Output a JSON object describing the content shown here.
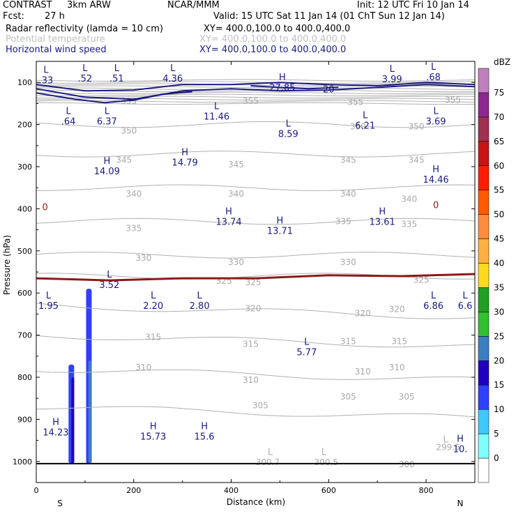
{
  "header": {
    "model": "CONTRAST",
    "model_res": "3km ARW",
    "org": "NCAR/MMM",
    "init": "Init: 12 UTC Fri 10 Jan 14",
    "fcst_label": "Fcst:",
    "fcst_value": "27 h",
    "valid": "Valid: 15 UTC Sat 11 Jan 14 (01 ChT Sun 12 Jan 14)",
    "fields": [
      {
        "name": "Radar reflectivity (lamda = 10 cm)",
        "xy": "XY= 400.0,100.0 to 400.0,400.0"
      },
      {
        "name": "Potential temperature",
        "xy": "XY= 400.0,100.0 to 400.0,400.0"
      },
      {
        "name": "Horizontal wind speed",
        "xy": "XY= 400.0,100.0 to 400.0,400.0"
      }
    ]
  },
  "chart_data": {
    "type": "cross-section",
    "x_axis": {
      "label": "Distance (km)",
      "range": [
        0,
        900
      ],
      "ticks": [
        0,
        200,
        400,
        600,
        800
      ],
      "end_labels": {
        "left": "S",
        "right": "N"
      }
    },
    "y_axis": {
      "label": "Pressure (hPa)",
      "range": [
        1050,
        50
      ],
      "ticks": [
        100,
        200,
        300,
        400,
        500,
        600,
        700,
        800,
        900,
        1000
      ]
    },
    "surface_pressure_hpa": 1005,
    "colorbar": {
      "title": "dBZ",
      "levels": [
        0,
        5,
        10,
        15,
        20,
        25,
        30,
        35,
        40,
        45,
        50,
        55,
        60,
        65,
        70,
        75
      ],
      "colors": [
        "#ffffff",
        "#80ffff",
        "#40c8ff",
        "#3040ff",
        "#2000c0",
        "#3a7fc0",
        "#30c030",
        "#20a020",
        "#ffd820",
        "#ffb040",
        "#ff8c3c",
        "#ff5a00",
        "#ff1e00",
        "#c81414",
        "#a03050",
        "#8c2890",
        "#c080c0"
      ]
    },
    "theta_contours": {
      "units": "K",
      "labels": [
        {
          "x": 190,
          "p": 143,
          "v": "355"
        },
        {
          "x": 440,
          "p": 143,
          "v": "355"
        },
        {
          "x": 655,
          "p": 145,
          "v": "355"
        },
        {
          "x": 855,
          "p": 140,
          "v": "355"
        },
        {
          "x": 190,
          "p": 213,
          "v": "350"
        },
        {
          "x": 660,
          "p": 203,
          "v": "350"
        },
        {
          "x": 780,
          "p": 203,
          "v": "350"
        },
        {
          "x": 180,
          "p": 283,
          "v": "345"
        },
        {
          "x": 410,
          "p": 293,
          "v": "345"
        },
        {
          "x": 640,
          "p": 283,
          "v": "345"
        },
        {
          "x": 780,
          "p": 283,
          "v": "345"
        },
        {
          "x": 200,
          "p": 363,
          "v": "340"
        },
        {
          "x": 410,
          "p": 363,
          "v": "340"
        },
        {
          "x": 640,
          "p": 363,
          "v": "340"
        },
        {
          "x": 765,
          "p": 375,
          "v": "340"
        },
        {
          "x": 200,
          "p": 445,
          "v": "335"
        },
        {
          "x": 630,
          "p": 428,
          "v": "335"
        },
        {
          "x": 765,
          "p": 435,
          "v": "335"
        },
        {
          "x": 220,
          "p": 515,
          "v": "330"
        },
        {
          "x": 410,
          "p": 525,
          "v": "330"
        },
        {
          "x": 640,
          "p": 525,
          "v": "330"
        },
        {
          "x": 385,
          "p": 570,
          "v": "325"
        },
        {
          "x": 445,
          "p": 573,
          "v": "325"
        },
        {
          "x": 790,
          "p": 567,
          "v": "325"
        },
        {
          "x": 445,
          "p": 635,
          "v": "320"
        },
        {
          "x": 670,
          "p": 647,
          "v": "320"
        },
        {
          "x": 740,
          "p": 637,
          "v": "320"
        },
        {
          "x": 240,
          "p": 703,
          "v": "315"
        },
        {
          "x": 440,
          "p": 720,
          "v": "315"
        },
        {
          "x": 640,
          "p": 713,
          "v": "315"
        },
        {
          "x": 745,
          "p": 713,
          "v": "315"
        },
        {
          "x": 220,
          "p": 775,
          "v": "310"
        },
        {
          "x": 440,
          "p": 805,
          "v": "310"
        },
        {
          "x": 670,
          "p": 785,
          "v": "310"
        },
        {
          "x": 740,
          "p": 775,
          "v": "310"
        },
        {
          "x": 460,
          "p": 865,
          "v": "305"
        },
        {
          "x": 640,
          "p": 845,
          "v": "305"
        },
        {
          "x": 760,
          "p": 845,
          "v": "305"
        },
        {
          "x": 475,
          "p": 1000,
          "v": "300.7"
        },
        {
          "x": 595,
          "p": 1000,
          "v": "300.5"
        },
        {
          "x": 760,
          "p": 1005,
          "v": "300"
        },
        {
          "x": 845,
          "p": 965,
          "v": "299.5"
        }
      ]
    },
    "wind_contours": {
      "units": "m/s",
      "labels": [
        {
          "x": 600,
          "p": 115,
          "v": "20"
        },
        {
          "x": 18,
          "p": 395,
          "v": "0"
        },
        {
          "x": 820,
          "p": 390,
          "v": "0"
        }
      ]
    },
    "extrema": [
      {
        "type": "L",
        "x": 100,
        "p": 73,
        "v": ".52"
      },
      {
        "type": "L",
        "x": 165,
        "p": 73,
        "v": ".51"
      },
      {
        "type": "L",
        "x": 280,
        "p": 73,
        "v": "4.36"
      },
      {
        "type": "L",
        "x": 730,
        "p": 75,
        "v": "3.99"
      },
      {
        "type": "L",
        "x": 815,
        "p": 70,
        "v": ".68"
      },
      {
        "type": "L",
        "x": 20,
        "p": 77,
        "v": ".33"
      },
      {
        "type": "H",
        "x": 505,
        "p": 95,
        "v": "27.85"
      },
      {
        "type": "L",
        "x": 66,
        "p": 175,
        "v": ".64"
      },
      {
        "type": "L",
        "x": 145,
        "p": 175,
        "v": "6.37"
      },
      {
        "type": "L",
        "x": 370,
        "p": 163,
        "v": "11.46"
      },
      {
        "type": "L",
        "x": 517,
        "p": 205,
        "v": "8.59"
      },
      {
        "type": "L",
        "x": 675,
        "p": 185,
        "v": "6.21"
      },
      {
        "type": "L",
        "x": 820,
        "p": 175,
        "v": "3.69"
      },
      {
        "type": "H",
        "x": 305,
        "p": 273,
        "v": "14.79"
      },
      {
        "type": "H",
        "x": 145,
        "p": 293,
        "v": "14.09"
      },
      {
        "type": "H",
        "x": 820,
        "p": 313,
        "v": "14.46"
      },
      {
        "type": "H",
        "x": 395,
        "p": 413,
        "v": "13.74"
      },
      {
        "type": "H",
        "x": 500,
        "p": 435,
        "v": "13.71"
      },
      {
        "type": "H",
        "x": 710,
        "p": 413,
        "v": "13.61"
      },
      {
        "type": "L",
        "x": 150,
        "p": 563,
        "v": "3.52"
      },
      {
        "type": "L",
        "x": 25,
        "p": 613,
        "v": "1.95"
      },
      {
        "type": "L",
        "x": 240,
        "p": 613,
        "v": "2.20"
      },
      {
        "type": "L",
        "x": 335,
        "p": 613,
        "v": "2.80"
      },
      {
        "type": "L",
        "x": 815,
        "p": 613,
        "v": "6.86"
      },
      {
        "type": "L",
        "x": 880,
        "p": 613,
        "v": "6.6"
      },
      {
        "type": "L",
        "x": 555,
        "p": 723,
        "v": "5.77"
      },
      {
        "type": "H",
        "x": 40,
        "p": 913,
        "v": "14.23"
      },
      {
        "type": "H",
        "x": 240,
        "p": 923,
        "v": "15.73"
      },
      {
        "type": "H",
        "x": 345,
        "p": 923,
        "v": "15.6"
      },
      {
        "type": "L",
        "x": 480,
        "p": 985,
        "v": ""
      },
      {
        "type": "L",
        "x": 590,
        "p": 985,
        "v": ""
      },
      {
        "type": "L",
        "x": 840,
        "p": 955,
        "v": ""
      },
      {
        "type": "H",
        "x": 870,
        "p": 953,
        "v": "10."
      }
    ],
    "reflectivity_columns": [
      {
        "x": 72,
        "p_top": 770,
        "p_bot": 1005,
        "dbz": 10
      },
      {
        "x": 75,
        "p_top": 800,
        "p_bot": 1005,
        "dbz": 15
      },
      {
        "x": 108,
        "p_top": 590,
        "p_bot": 1005,
        "dbz": 10
      },
      {
        "x": 110,
        "p_top": 760,
        "p_bot": 1005,
        "dbz": 20
      }
    ]
  }
}
